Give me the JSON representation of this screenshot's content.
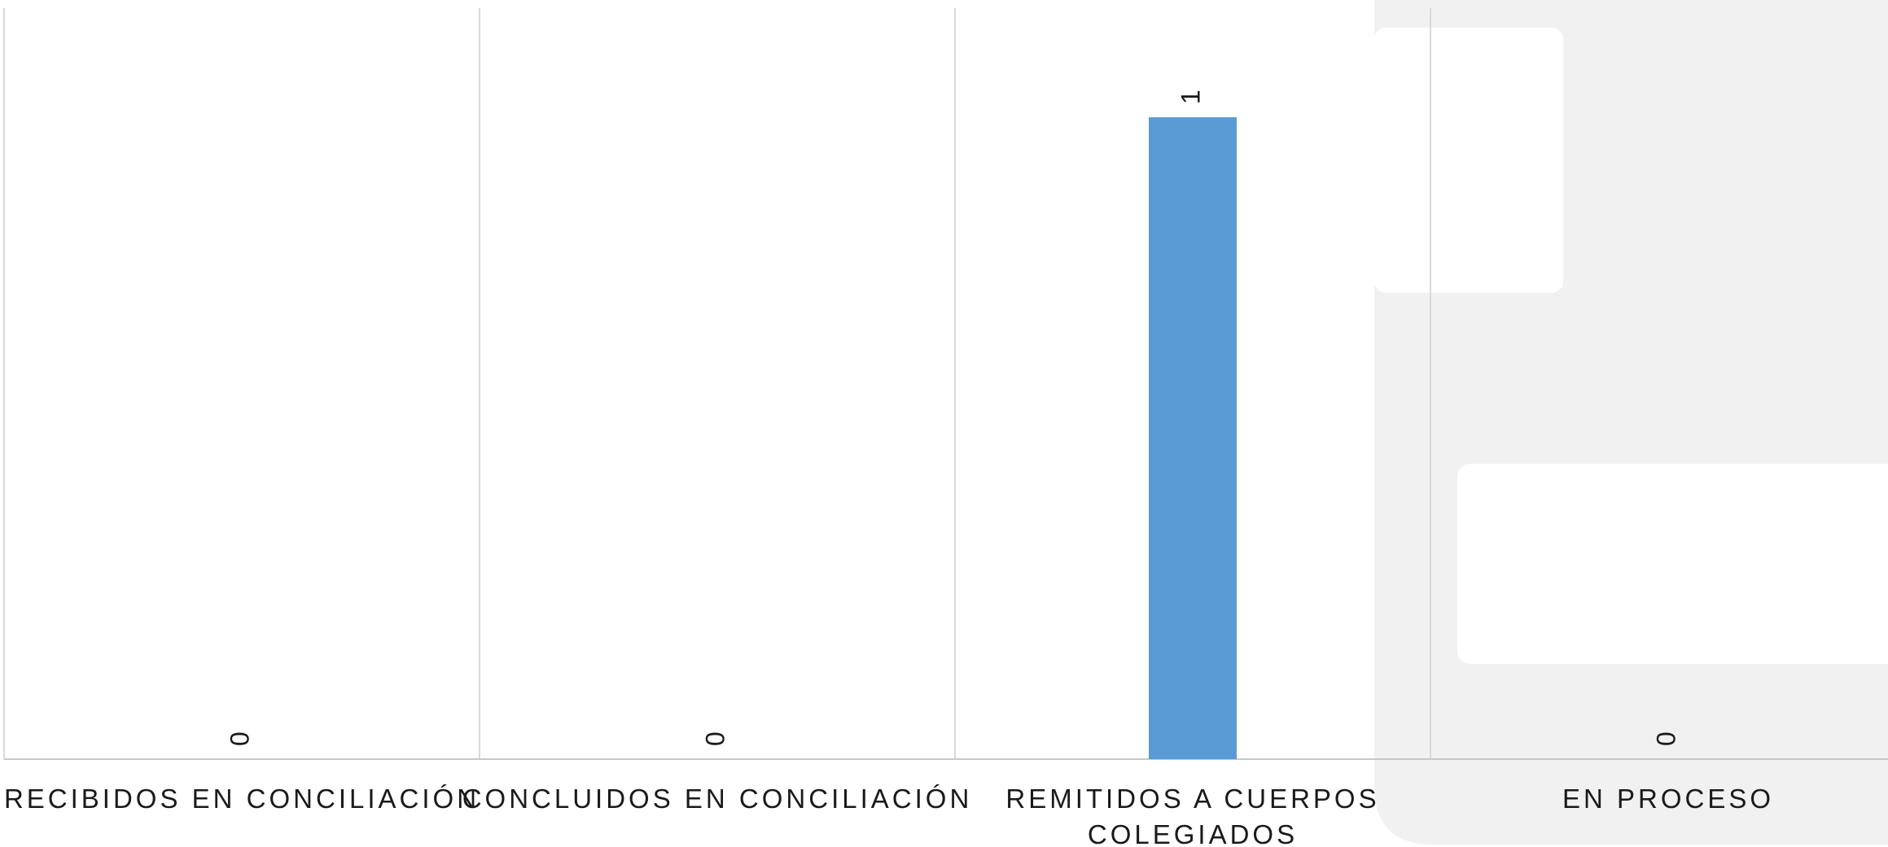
{
  "colors": {
    "bar": "#5b9bd5",
    "gridline": "#d9d9d9",
    "axis": "#c8c8c8",
    "text": "#1a1a1a",
    "decor_panel": "#f0f1f0",
    "decor_cutout": "#ffffff"
  },
  "chart_data": {
    "type": "bar",
    "title": "",
    "xlabel": "",
    "ylabel": "",
    "categories": [
      [
        "RECIBIDOS EN CONCILIACIÓN"
      ],
      [
        "CONCLUIDOS EN CONCILIACIÓN"
      ],
      [
        "REMITIDOS A CUERPOS",
        "COLEGIADOS"
      ],
      [
        "EN PROCESO"
      ]
    ],
    "values": [
      0,
      0,
      1,
      0
    ],
    "data_labels": [
      "0",
      "0",
      "1",
      "0"
    ],
    "ylim": [
      0,
      1.17
    ],
    "grid": "vertical category separators",
    "legend": "none",
    "data_label_rotation": "vertical"
  }
}
